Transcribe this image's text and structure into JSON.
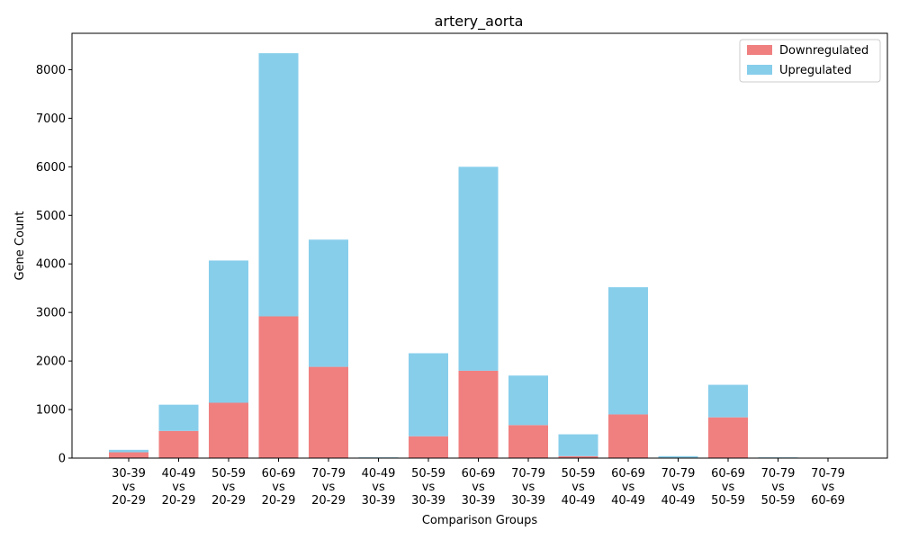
{
  "chart_data": {
    "type": "bar",
    "stacked": true,
    "title": "artery_aorta",
    "xlabel": "Comparison Groups",
    "ylabel": "Gene Count",
    "ylim": [
      0,
      8750
    ],
    "yticks": [
      0,
      1000,
      2000,
      3000,
      4000,
      5000,
      6000,
      7000,
      8000
    ],
    "grid": false,
    "legend_position": "top-right",
    "categories": [
      [
        "30-39",
        "vs",
        "20-29"
      ],
      [
        "40-49",
        "vs",
        "20-29"
      ],
      [
        "50-59",
        "vs",
        "20-29"
      ],
      [
        "60-69",
        "vs",
        "20-29"
      ],
      [
        "70-79",
        "vs",
        "20-29"
      ],
      [
        "40-49",
        "vs",
        "30-39"
      ],
      [
        "50-59",
        "vs",
        "30-39"
      ],
      [
        "60-69",
        "vs",
        "30-39"
      ],
      [
        "70-79",
        "vs",
        "30-39"
      ],
      [
        "50-59",
        "vs",
        "40-49"
      ],
      [
        "60-69",
        "vs",
        "40-49"
      ],
      [
        "70-79",
        "vs",
        "40-49"
      ],
      [
        "60-69",
        "vs",
        "50-59"
      ],
      [
        "70-79",
        "vs",
        "50-59"
      ],
      [
        "70-79",
        "vs",
        "60-69"
      ]
    ],
    "series": [
      {
        "name": "Downregulated",
        "color": "#f08080",
        "values": [
          120,
          560,
          1140,
          2920,
          1880,
          5,
          450,
          1800,
          680,
          40,
          900,
          10,
          840,
          5,
          2
        ]
      },
      {
        "name": "Upregulated",
        "color": "#87ceeb",
        "values": [
          50,
          540,
          2930,
          5420,
          2620,
          10,
          1710,
          4200,
          1020,
          450,
          2620,
          30,
          670,
          10,
          3
        ]
      }
    ]
  }
}
